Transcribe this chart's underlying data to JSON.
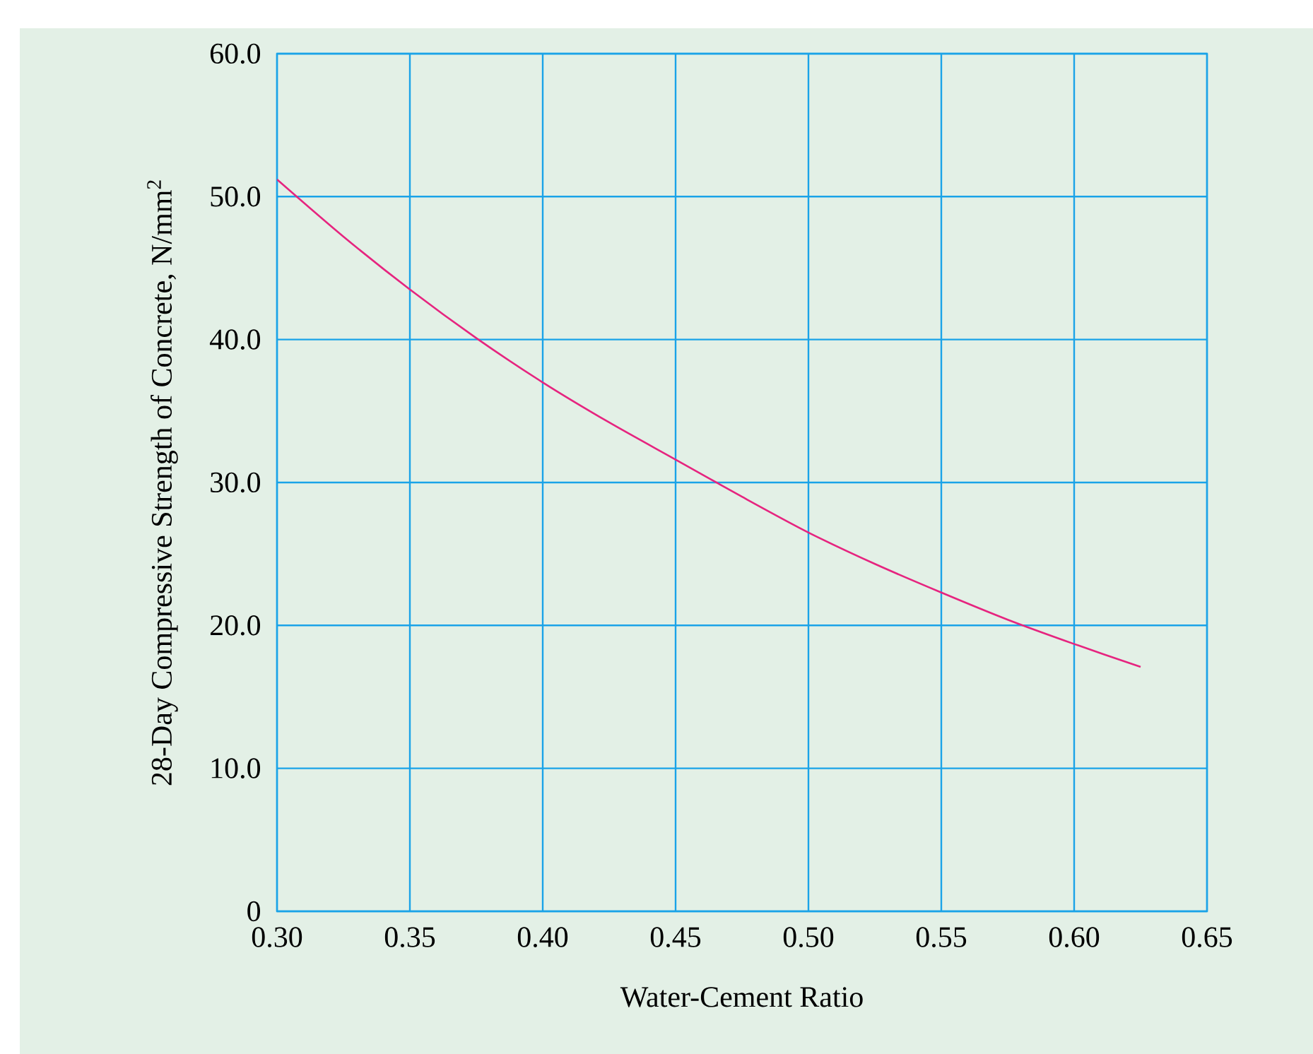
{
  "chart_data": {
    "type": "line",
    "xlabel": "Water-Cement Ratio",
    "ylabel": "28-Day Compressive Strength of Concrete, N/mm$^{2}$",
    "x": [
      0.3,
      0.325,
      0.35,
      0.375,
      0.4,
      0.425,
      0.45,
      0.475,
      0.5,
      0.525,
      0.55,
      0.575,
      0.6,
      0.625
    ],
    "values": [
      51.2,
      47.2,
      43.5,
      40.1,
      37.0,
      34.2,
      31.6,
      29.0,
      26.5,
      24.3,
      22.3,
      20.4,
      18.7,
      17.1
    ],
    "color": "#e6247f",
    "line_style": "solid",
    "xlim": [
      0.3,
      0.65
    ],
    "ylim": [
      0,
      60
    ],
    "xticks": [
      {
        "value": 0.3,
        "label": "0.30"
      },
      {
        "value": 0.35,
        "label": "0.35"
      },
      {
        "value": 0.4,
        "label": "0.40"
      },
      {
        "value": 0.45,
        "label": "0.45"
      },
      {
        "value": 0.5,
        "label": "0.50"
      },
      {
        "value": 0.55,
        "label": "0.55"
      },
      {
        "value": 0.6,
        "label": "0.60"
      },
      {
        "value": 0.65,
        "label": "0.65"
      }
    ],
    "yticks": [
      0,
      {
        "value": 10,
        "label": "10.0"
      },
      {
        "value": 20,
        "label": "20.0"
      },
      {
        "value": 30,
        "label": "30.0"
      },
      {
        "value": 40,
        "label": "40.0"
      },
      {
        "value": 50,
        "label": "50.0"
      },
      {
        "value": 60,
        "label": "60.0"
      }
    ],
    "grid": true
  }
}
